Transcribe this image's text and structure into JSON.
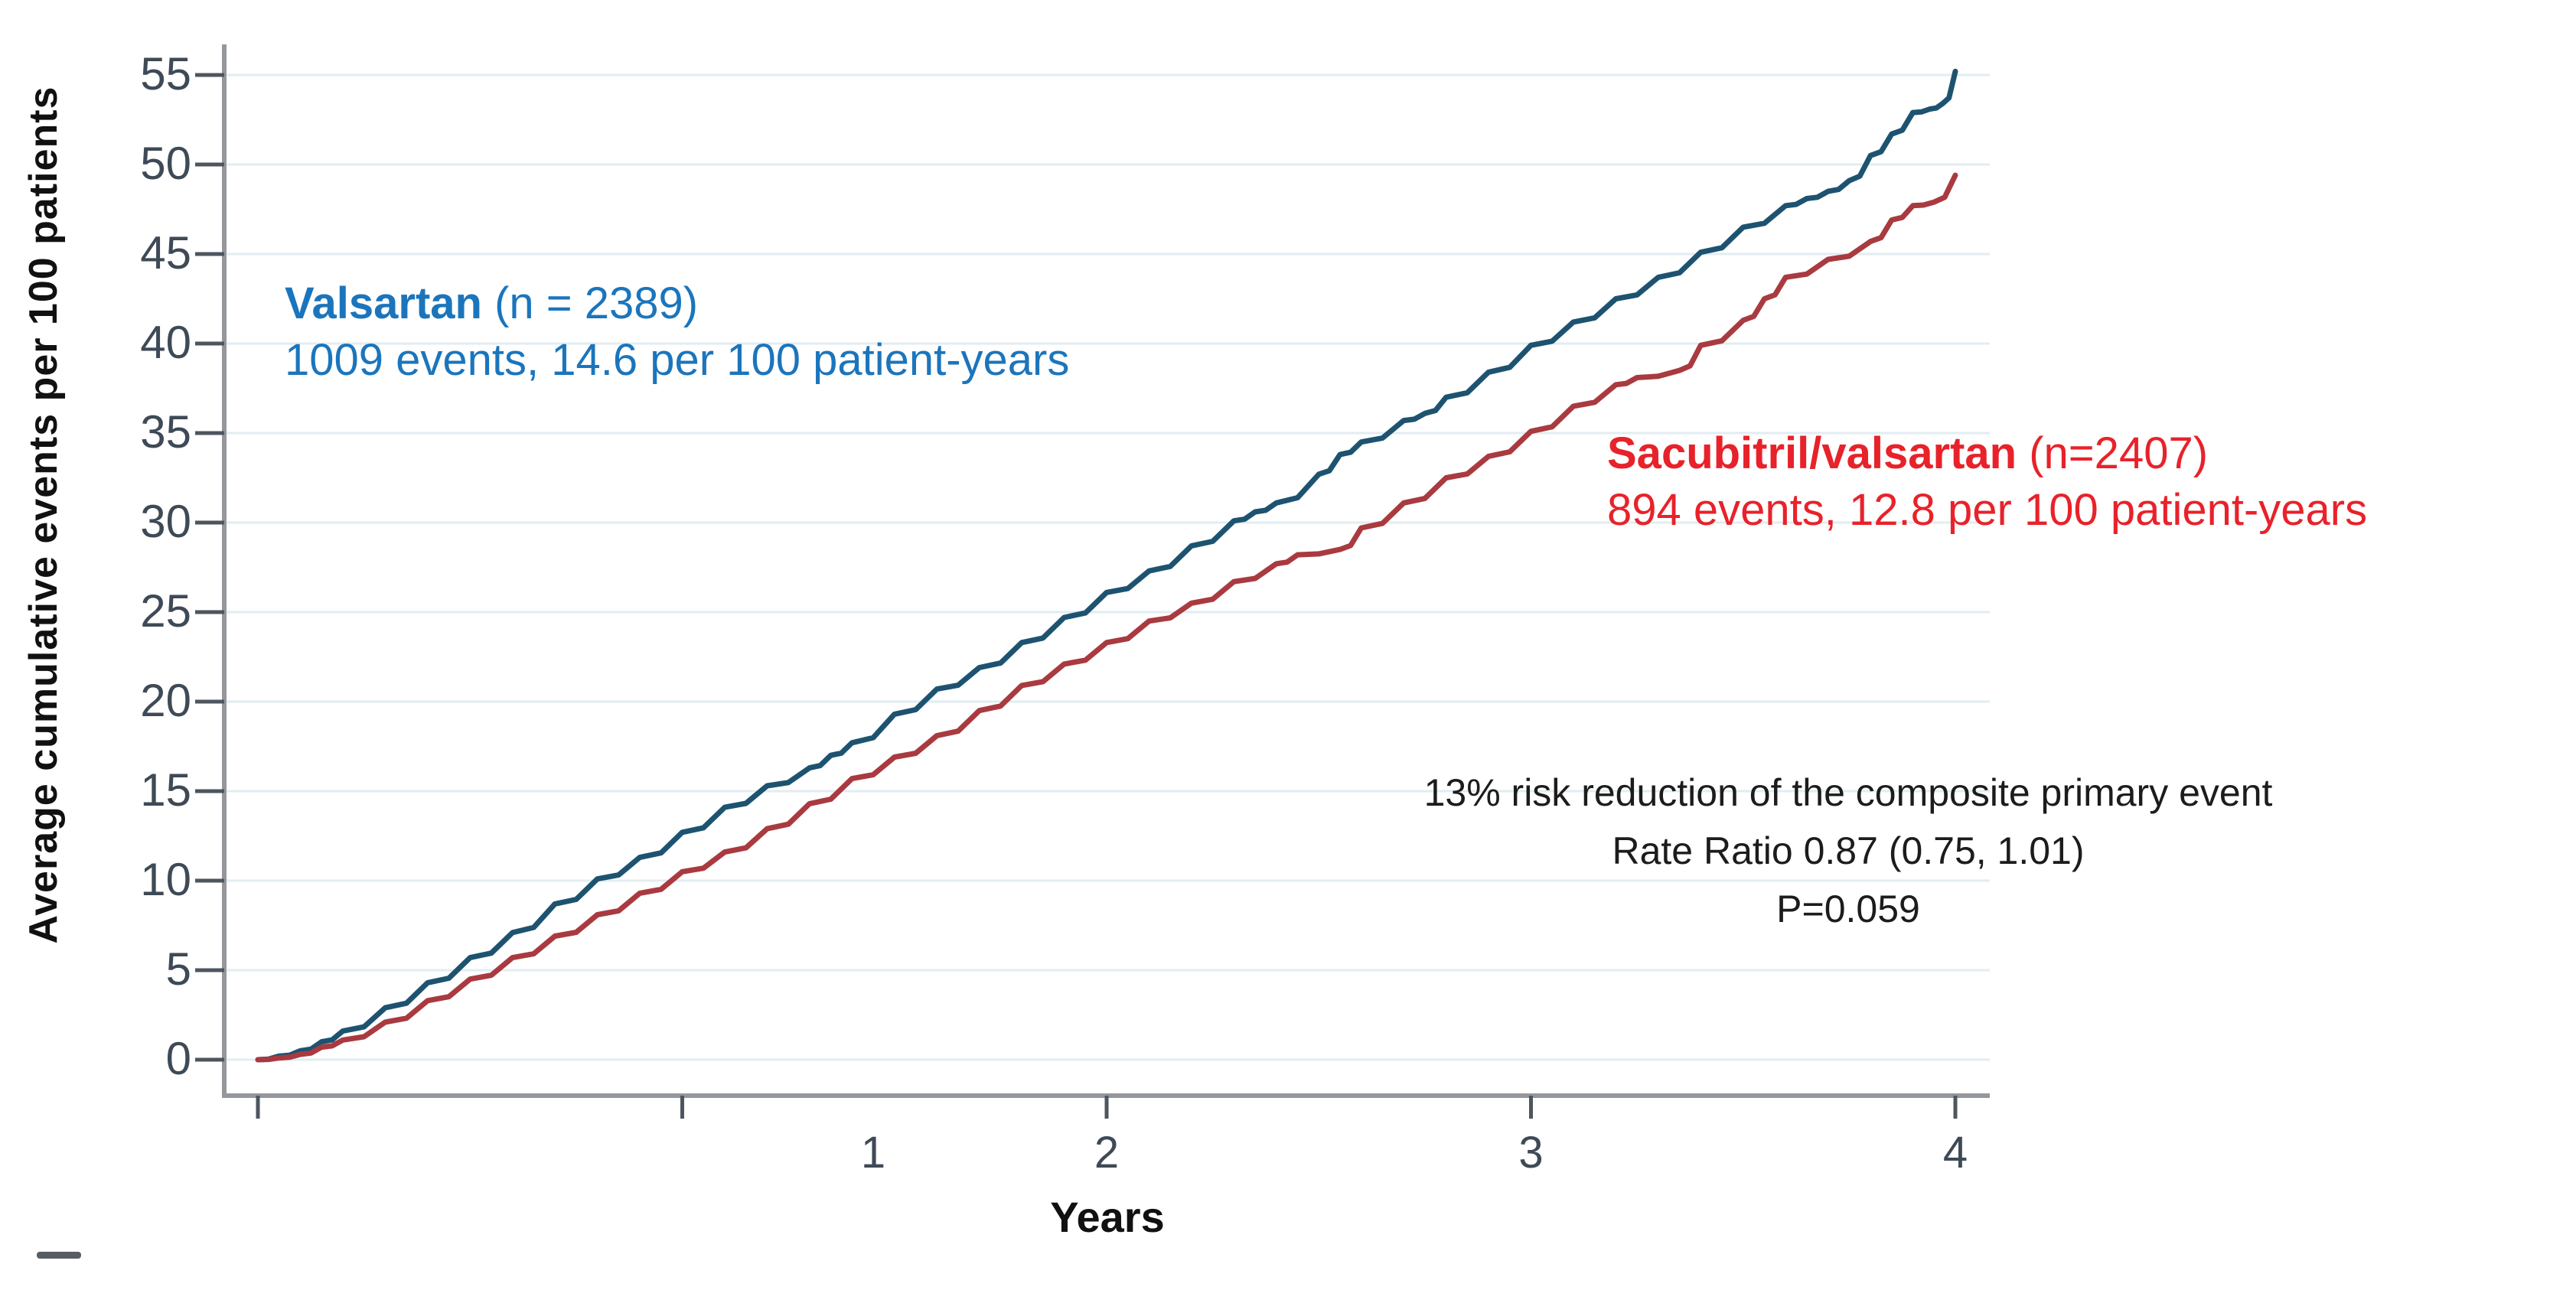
{
  "figure": {
    "y_axis_title": "Average cumulative events per 100 patients",
    "x_axis_title": "Years",
    "legend_valsartan": {
      "name": "Valsartan",
      "n_suffix": " (n = 2389)",
      "line2": "1009 events, 14.6 per 100 patient-years"
    },
    "legend_sacubitril": {
      "name": "Sacubitril/valsartan",
      "n_suffix": " (n=2407)",
      "line2": "894 events, 12.8 per 100 patient-years"
    },
    "annotation": {
      "line1": "13% risk reduction of the composite primary event",
      "line2": "Rate Ratio 0.87 (0.75, 1.01)",
      "line3": "P=0.059"
    }
  },
  "colors": {
    "valsartan_line": "#1d5370",
    "sacubitril_line": "#a93a40",
    "valsartan_text": "#1b75bc",
    "sacubitril_text": "#e8222a",
    "axis": "#94989c",
    "tick": "#4d565e",
    "tick_label": "#3e4a56",
    "grid": "#e2edf2",
    "annotation_text": "#1c1c1c"
  },
  "chart_data": {
    "type": "line",
    "title": "",
    "xlabel": "Years",
    "ylabel": "Average cumulative events per 100 patients",
    "x_range": [
      0,
      4
    ],
    "ylim": [
      0,
      55
    ],
    "y_ticks": [
      0,
      5,
      10,
      15,
      20,
      25,
      30,
      35,
      40,
      45,
      50,
      55
    ],
    "x_ticks": [
      0,
      1,
      2,
      3,
      4
    ],
    "x_tick_labels": [
      {
        "label": "1",
        "year_position": 1.45
      },
      {
        "label": "2",
        "year_position": 2
      },
      {
        "label": "3",
        "year_position": 3
      },
      {
        "label": "4",
        "year_position": 4
      }
    ],
    "grid": "horizontal, faint light-blue lines every 5 units",
    "legend_position": "labels placed beside curves",
    "series": [
      {
        "name": "Valsartan",
        "n": 2389,
        "events": 1009,
        "rate_per_100_patient_years": 14.6,
        "color": "#1d5370",
        "points": [
          [
            0,
            0
          ],
          [
            0.05,
            0.2
          ],
          [
            0.1,
            0.5
          ],
          [
            0.15,
            1.0
          ],
          [
            0.2,
            1.6
          ],
          [
            0.3,
            2.9
          ],
          [
            0.4,
            4.3
          ],
          [
            0.5,
            5.7
          ],
          [
            0.6,
            7.1
          ],
          [
            0.7,
            8.7
          ],
          [
            0.8,
            10.1
          ],
          [
            0.9,
            11.3
          ],
          [
            1.0,
            12.7
          ],
          [
            1.1,
            14.1
          ],
          [
            1.2,
            15.3
          ],
          [
            1.3,
            16.3
          ],
          [
            1.35,
            17.0
          ],
          [
            1.4,
            17.7
          ],
          [
            1.5,
            19.3
          ],
          [
            1.6,
            20.7
          ],
          [
            1.7,
            21.9
          ],
          [
            1.8,
            23.3
          ],
          [
            1.9,
            24.7
          ],
          [
            2.0,
            26.1
          ],
          [
            2.1,
            27.3
          ],
          [
            2.2,
            28.7
          ],
          [
            2.3,
            30.1
          ],
          [
            2.35,
            30.6
          ],
          [
            2.4,
            31.1
          ],
          [
            2.5,
            32.7
          ],
          [
            2.55,
            33.8
          ],
          [
            2.6,
            34.5
          ],
          [
            2.7,
            35.7
          ],
          [
            2.75,
            36.1
          ],
          [
            2.8,
            37.0
          ],
          [
            2.9,
            38.4
          ],
          [
            3.0,
            39.9
          ],
          [
            3.1,
            41.2
          ],
          [
            3.2,
            42.5
          ],
          [
            3.3,
            43.7
          ],
          [
            3.4,
            45.1
          ],
          [
            3.5,
            46.5
          ],
          [
            3.6,
            47.7
          ],
          [
            3.65,
            48.1
          ],
          [
            3.7,
            48.5
          ],
          [
            3.75,
            49.1
          ],
          [
            3.8,
            50.5
          ],
          [
            3.85,
            51.7
          ],
          [
            3.9,
            52.9
          ],
          [
            3.94,
            53.1
          ],
          [
            3.97,
            53.4
          ],
          [
            4.0,
            55.2
          ]
        ]
      },
      {
        "name": "Sacubitril/valsartan",
        "n": 2407,
        "events": 894,
        "rate_per_100_patient_years": 12.8,
        "color": "#a93a40",
        "points": [
          [
            0,
            0
          ],
          [
            0.05,
            0.1
          ],
          [
            0.1,
            0.3
          ],
          [
            0.15,
            0.7
          ],
          [
            0.2,
            1.1
          ],
          [
            0.3,
            2.1
          ],
          [
            0.4,
            3.3
          ],
          [
            0.5,
            4.5
          ],
          [
            0.6,
            5.7
          ],
          [
            0.7,
            6.9
          ],
          [
            0.8,
            8.1
          ],
          [
            0.9,
            9.3
          ],
          [
            1.0,
            10.5
          ],
          [
            1.1,
            11.6
          ],
          [
            1.2,
            12.9
          ],
          [
            1.3,
            14.3
          ],
          [
            1.4,
            15.7
          ],
          [
            1.5,
            16.9
          ],
          [
            1.6,
            18.1
          ],
          [
            1.7,
            19.5
          ],
          [
            1.8,
            20.9
          ],
          [
            1.9,
            22.1
          ],
          [
            2.0,
            23.3
          ],
          [
            2.1,
            24.5
          ],
          [
            2.2,
            25.5
          ],
          [
            2.3,
            26.7
          ],
          [
            2.4,
            27.7
          ],
          [
            2.45,
            28.2
          ],
          [
            2.55,
            28.5
          ],
          [
            2.6,
            29.7
          ],
          [
            2.7,
            31.1
          ],
          [
            2.8,
            32.5
          ],
          [
            2.9,
            33.7
          ],
          [
            3.0,
            35.1
          ],
          [
            3.1,
            36.5
          ],
          [
            3.2,
            37.7
          ],
          [
            3.25,
            38.1
          ],
          [
            3.35,
            38.5
          ],
          [
            3.4,
            39.9
          ],
          [
            3.5,
            41.3
          ],
          [
            3.55,
            42.5
          ],
          [
            3.6,
            43.7
          ],
          [
            3.7,
            44.7
          ],
          [
            3.8,
            45.7
          ],
          [
            3.85,
            46.9
          ],
          [
            3.9,
            47.7
          ],
          [
            3.95,
            47.9
          ],
          [
            4.0,
            49.4
          ]
        ]
      }
    ],
    "annotation": [
      "13% risk reduction of the composite primary event",
      "Rate Ratio 0.87 (0.75, 1.01)",
      "P=0.059"
    ]
  }
}
